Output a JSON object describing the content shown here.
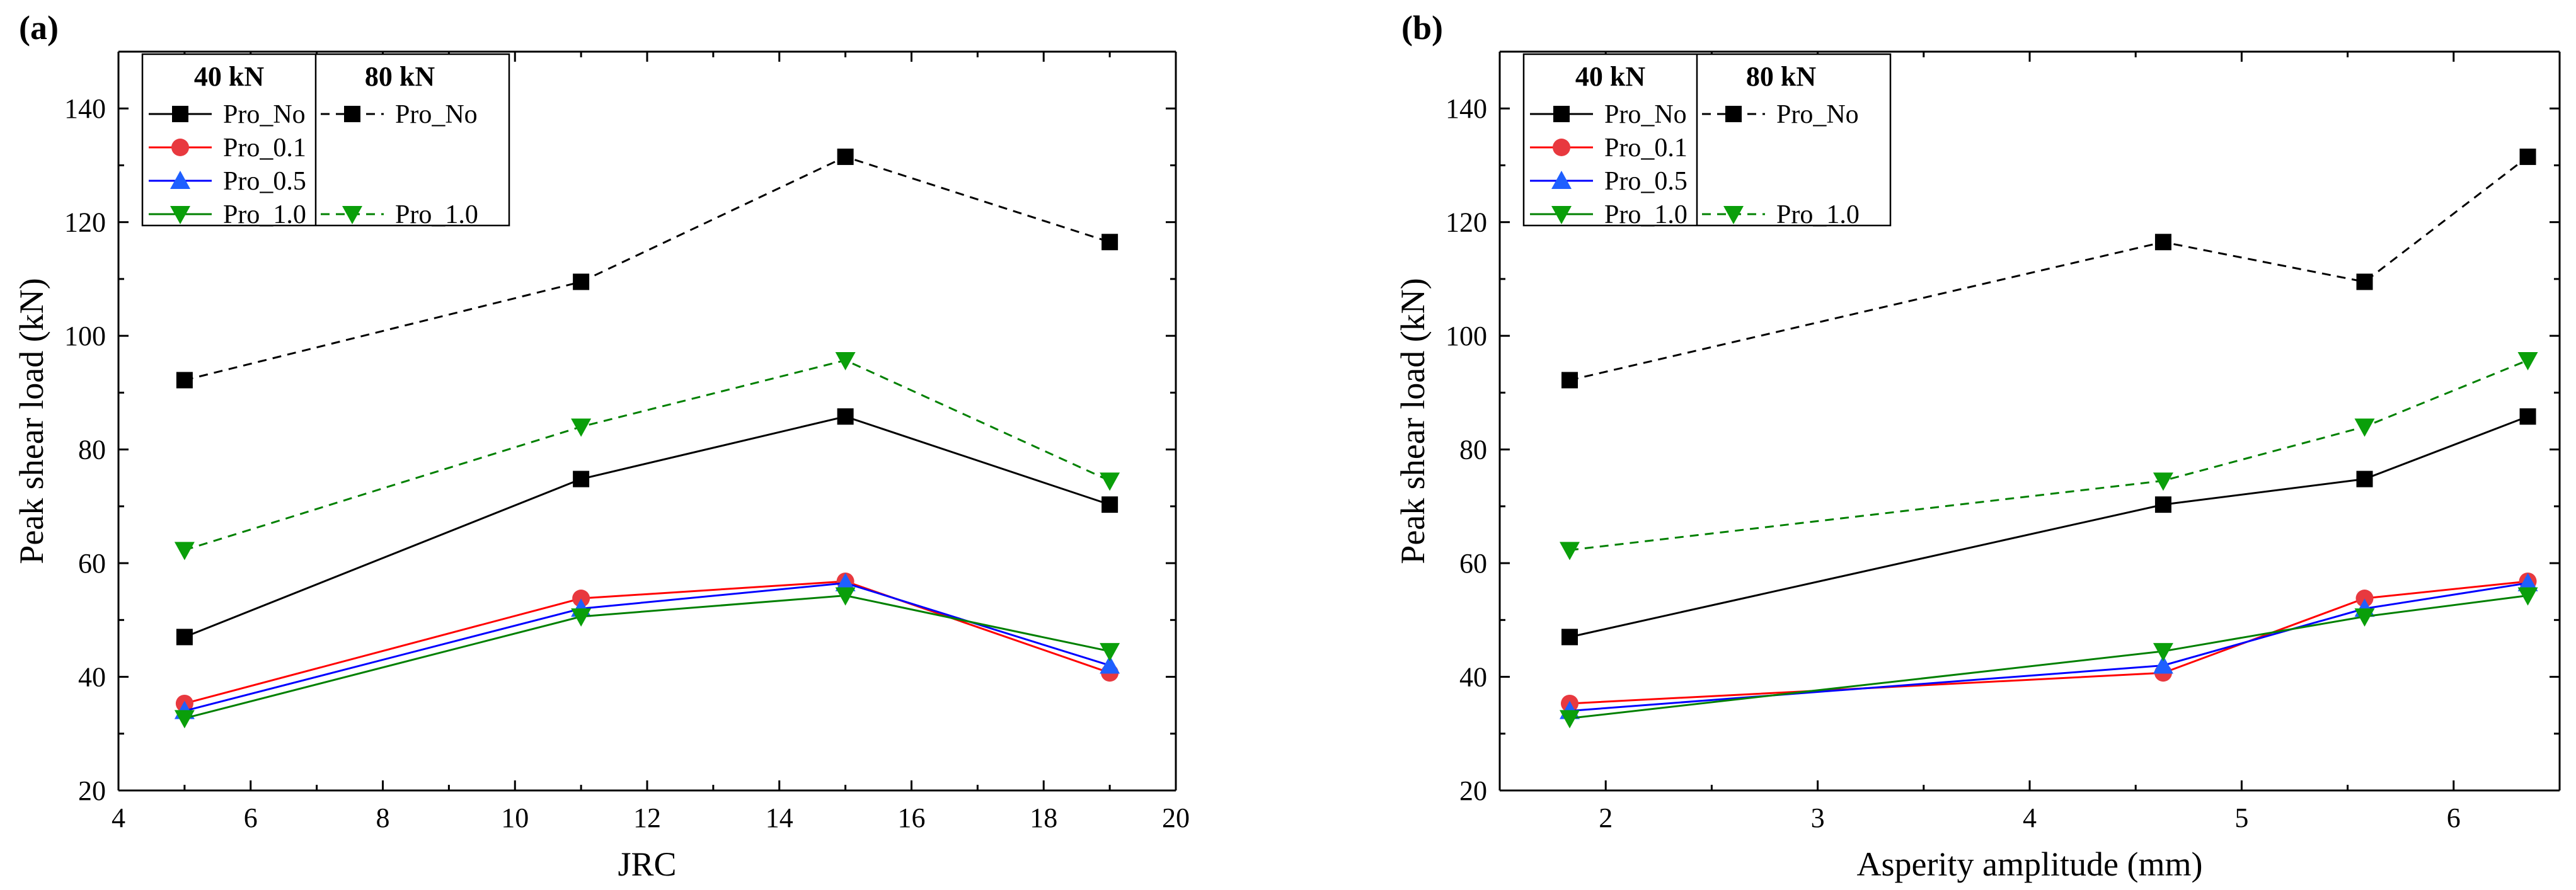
{
  "colors": {
    "black": "#000000",
    "red": "#ff0000",
    "blue": "#0000ff",
    "green": "#008000",
    "marker_red": "#e8393f",
    "marker_blue": "#1f5fff",
    "marker_green": "#0a9f0a"
  },
  "chart_data": [
    {
      "type": "line",
      "panel": "(a)",
      "xlabel": "JRC",
      "ylabel": "Peak shear load (kN)",
      "xlim": [
        4,
        20
      ],
      "ylim": [
        20,
        150
      ],
      "xticks": [
        4,
        6,
        8,
        10,
        12,
        14,
        16,
        18,
        20
      ],
      "yticks": [
        20,
        40,
        60,
        80,
        100,
        120,
        140
      ],
      "legend": {
        "location": "top-left",
        "group_40": "40 kN",
        "group_80": "80 kN"
      },
      "series": [
        {
          "name": "Pro_No",
          "group": "40 kN",
          "color": "black",
          "marker": "square",
          "dash": false,
          "x": [
            5,
            11,
            15,
            19
          ],
          "values": [
            47,
            74.8,
            85.8,
            70.3
          ]
        },
        {
          "name": "Pro_0.1",
          "group": "40 kN",
          "color": "red",
          "marker": "circle",
          "dash": false,
          "x": [
            5,
            11,
            15,
            19
          ],
          "values": [
            35.3,
            53.8,
            56.8,
            40.7
          ]
        },
        {
          "name": "Pro_0.5",
          "group": "40 kN",
          "color": "blue",
          "marker": "triangle-up",
          "dash": false,
          "x": [
            5,
            11,
            15,
            19
          ],
          "values": [
            34,
            52,
            56.5,
            42
          ]
        },
        {
          "name": "Pro_1.0",
          "group": "40 kN",
          "color": "green",
          "marker": "triangle-down",
          "dash": false,
          "x": [
            5,
            11,
            15,
            19
          ],
          "values": [
            32.7,
            50.6,
            54.3,
            44.5
          ]
        },
        {
          "name": "Pro_No",
          "group": "80 kN",
          "color": "black",
          "marker": "square",
          "dash": true,
          "x": [
            5,
            11,
            15,
            19
          ],
          "values": [
            92.2,
            109.5,
            131.5,
            116.5
          ]
        },
        {
          "name": "Pro_1.0",
          "group": "80 kN",
          "color": "green",
          "marker": "triangle-down",
          "dash": true,
          "x": [
            5,
            11,
            15,
            19
          ],
          "values": [
            62.3,
            84,
            95.7,
            74.5
          ]
        }
      ]
    },
    {
      "type": "line",
      "panel": "(b)",
      "xlabel": "Asperity amplitude (mm)",
      "ylabel": "Peak shear load (kN)",
      "xlim": [
        1.5,
        6.5
      ],
      "ylim": [
        20,
        150
      ],
      "xticks": [
        2,
        3,
        4,
        5,
        6
      ],
      "yticks": [
        20,
        40,
        60,
        80,
        100,
        120,
        140
      ],
      "legend": {
        "location": "top-left",
        "group_40": "40 kN",
        "group_80": "80 kN"
      },
      "series": [
        {
          "name": "Pro_No",
          "group": "40 kN",
          "color": "black",
          "marker": "square",
          "dash": false,
          "x": [
            1.83,
            4.63,
            5.58,
            6.35
          ],
          "values": [
            47,
            70.3,
            74.8,
            85.8
          ]
        },
        {
          "name": "Pro_0.1",
          "group": "40 kN",
          "color": "red",
          "marker": "circle",
          "dash": false,
          "x": [
            1.83,
            4.63,
            5.58,
            6.35
          ],
          "values": [
            35.3,
            40.7,
            53.8,
            56.8
          ]
        },
        {
          "name": "Pro_0.5",
          "group": "40 kN",
          "color": "blue",
          "marker": "triangle-up",
          "dash": false,
          "x": [
            1.83,
            4.63,
            5.58,
            6.35
          ],
          "values": [
            34,
            42,
            52,
            56.5
          ]
        },
        {
          "name": "Pro_1.0",
          "group": "40 kN",
          "color": "green",
          "marker": "triangle-down",
          "dash": false,
          "x": [
            1.83,
            4.63,
            5.58,
            6.35
          ],
          "values": [
            32.7,
            44.5,
            50.6,
            54.3
          ]
        },
        {
          "name": "Pro_No",
          "group": "80 kN",
          "color": "black",
          "marker": "square",
          "dash": true,
          "x": [
            1.83,
            4.63,
            5.58,
            6.35
          ],
          "values": [
            92.2,
            116.5,
            109.5,
            131.5
          ]
        },
        {
          "name": "Pro_1.0",
          "group": "80 kN",
          "color": "green",
          "marker": "triangle-down",
          "dash": true,
          "x": [
            1.83,
            4.63,
            5.58,
            6.35
          ],
          "values": [
            62.3,
            74.5,
            84,
            95.7
          ]
        }
      ]
    }
  ]
}
